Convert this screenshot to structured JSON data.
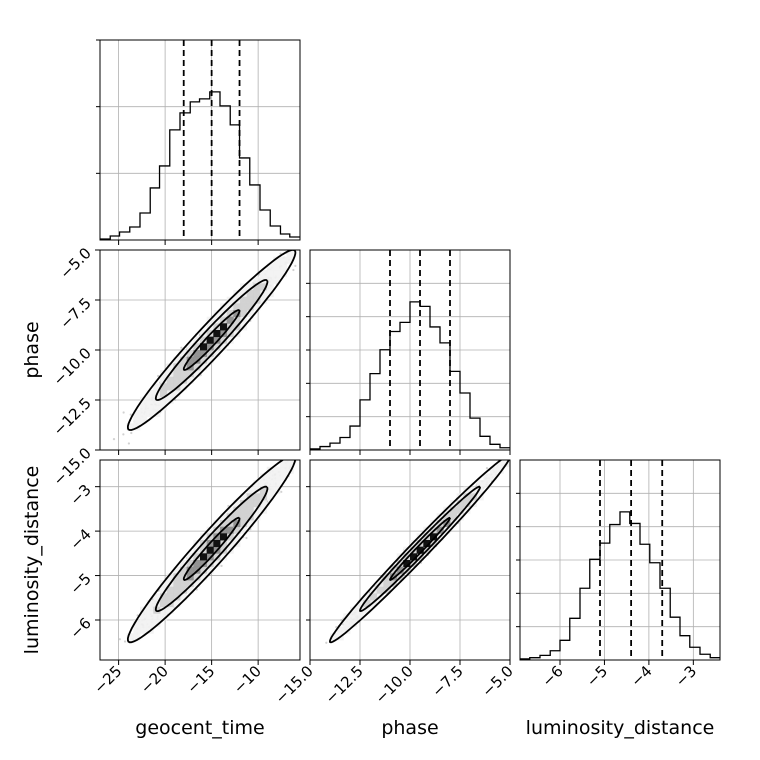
{
  "chart_data": {
    "type": "corner",
    "parameters": [
      "geocent_time",
      "phase",
      "luminosity_distance"
    ],
    "axis_labels": {
      "x": [
        "geocent_time",
        "phase",
        "luminosity_distance"
      ],
      "y_row1": "phase",
      "y_row2": "luminosity_distance"
    },
    "ranges": {
      "geocent_time": [
        -27,
        -5.5
      ],
      "phase": [
        -15.0,
        -5.0
      ],
      "luminosity_distance": [
        -6.9,
        -2.4
      ]
    },
    "ticks": {
      "geocent_time": {
        "values": [
          -25,
          -20,
          -15,
          -10
        ],
        "labels": [
          "−25",
          "−20",
          "−15",
          "−10"
        ]
      },
      "phase": {
        "values": [
          -15.0,
          -12.5,
          -10.0,
          -7.5,
          -5.0
        ],
        "labels": [
          "−15.0",
          "−12.5",
          "−10.0",
          "−7.5",
          "−5.0"
        ]
      },
      "luminosity_distance": {
        "x_values": [
          -6,
          -5,
          -4,
          -3
        ],
        "x_labels": [
          "−6",
          "−5",
          "−4",
          "−3"
        ],
        "y_values": [
          -6,
          -5,
          -4,
          -3
        ],
        "y_labels": [
          "−6",
          "−5",
          "−4",
          "−3"
        ]
      }
    },
    "quantiles": {
      "geocent_time": [
        -18.0,
        -15.0,
        -12.0
      ],
      "phase": [
        -11.0,
        -9.5,
        -8.0
      ],
      "luminosity_distance": [
        -5.1,
        -4.4,
        -3.7
      ]
    },
    "histograms": [
      {
        "parameter": "geocent_time",
        "bin_edges": [
          -27.0,
          -25.9,
          -24.9,
          -23.8,
          -22.7,
          -21.6,
          -20.6,
          -19.5,
          -18.4,
          -17.3,
          -16.3,
          -15.2,
          -14.1,
          -13.0,
          -12.0,
          -10.9,
          -9.8,
          -8.7,
          -7.6,
          -6.6,
          -5.5
        ],
        "counts": [
          1,
          4,
          8,
          13,
          27,
          52,
          74,
          110,
          127,
          138,
          141,
          148,
          134,
          115,
          82,
          55,
          30,
          14,
          6,
          3
        ]
      },
      {
        "parameter": "phase",
        "bin_edges": [
          -15.0,
          -14.5,
          -14.0,
          -13.5,
          -13.0,
          -12.5,
          -12.0,
          -11.5,
          -11.0,
          -10.5,
          -10.0,
          -9.5,
          -9.0,
          -8.5,
          -8.0,
          -7.5,
          -7.0,
          -6.5,
          -6.0,
          -5.5,
          -5.0
        ],
        "counts": [
          1,
          3,
          6,
          11,
          21,
          44,
          67,
          88,
          104,
          112,
          130,
          126,
          108,
          94,
          69,
          50,
          28,
          12,
          5,
          2
        ]
      },
      {
        "parameter": "luminosity_distance",
        "bin_edges": [
          -6.9,
          -6.68,
          -6.45,
          -6.22,
          -6.0,
          -5.78,
          -5.55,
          -5.33,
          -5.1,
          -4.88,
          -4.65,
          -4.43,
          -4.2,
          -3.98,
          -3.75,
          -3.52,
          -3.3,
          -3.08,
          -2.85,
          -2.62,
          -2.4
        ],
        "counts": [
          1,
          2,
          4,
          8,
          17,
          36,
          62,
          87,
          101,
          117,
          128,
          118,
          100,
          84,
          62,
          37,
          21,
          11,
          5,
          2
        ]
      }
    ],
    "pairs": [
      {
        "x": "geocent_time",
        "y": "phase",
        "center": [
          -15.0,
          -9.5
        ],
        "sd": [
          3.0,
          1.5
        ],
        "rho": 0.97
      },
      {
        "x": "geocent_time",
        "y": "luminosity_distance",
        "center": [
          -15.0,
          -4.4
        ],
        "sd": [
          3.0,
          0.7
        ],
        "rho": 0.97
      },
      {
        "x": "phase",
        "y": "luminosity_distance",
        "center": [
          -9.5,
          -4.4
        ],
        "sd": [
          1.5,
          0.7
        ],
        "rho": 0.99
      }
    ],
    "contour_levels": [
      0.393,
      0.865,
      0.989
    ],
    "grid": true,
    "colors": {
      "line": "#000000",
      "points": "#9a9a9a",
      "grid": "#b0b0b0",
      "background": "#ffffff"
    }
  }
}
